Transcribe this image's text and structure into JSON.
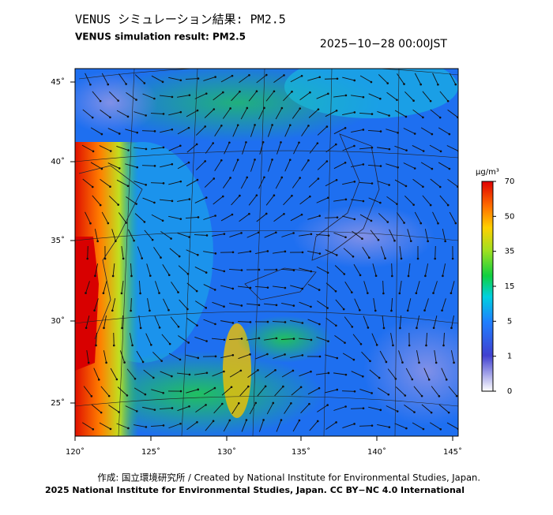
{
  "header": {
    "title": "VENUS シミュレーション結果: PM2.5",
    "subtitle": "VENUS simulation result: PM2.5",
    "datetime": "2025−10−28 00:00JST"
  },
  "map": {
    "lat_labels": [
      "45˚",
      "40˚",
      "35˚",
      "30˚",
      "25˚"
    ],
    "lon_labels": [
      "120˚",
      "125˚",
      "130˚",
      "135˚",
      "140˚",
      "145˚"
    ]
  },
  "colorbar": {
    "unit": "μg/m³",
    "ticks": [
      0,
      1,
      5,
      15,
      35,
      50,
      70
    ]
  },
  "footer": {
    "credit": "作成: 国立環境研究所 / Created by National Institute for Environmental Studies, Japan.",
    "license": "2025 National Institute for Environmental Studies, Japan. CC BY−NC 4.0 International"
  }
}
